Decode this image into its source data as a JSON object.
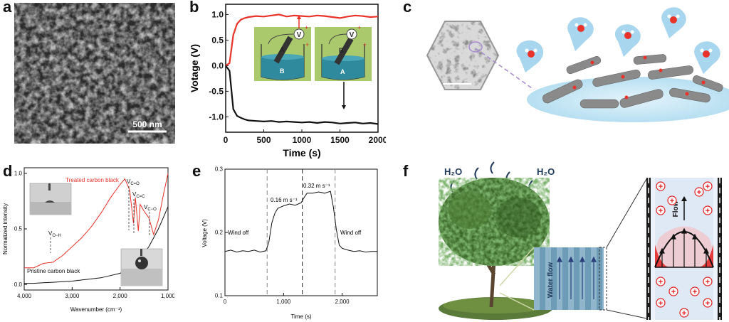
{
  "panels": {
    "a": {
      "label": "a",
      "scalebar": "500 nm"
    },
    "b": {
      "label": "b",
      "ylabel": "Votage (V)",
      "xlabel": "Time (s)",
      "yticks": [
        "1.0",
        "0.5",
        "0.0",
        "-0.5",
        "-1.0"
      ],
      "xticks": [
        "0",
        "500",
        "1000",
        "1500",
        "2000"
      ],
      "inset_labels": [
        "V",
        "A",
        "B",
        "V",
        "B",
        "A"
      ],
      "signs": [
        "+",
        "+",
        "+",
        "+"
      ]
    },
    "c": {
      "label": "c"
    },
    "d": {
      "label": "d",
      "ylabel": "Normalized intensity",
      "xlabel": "Wavenumber (cm⁻¹)",
      "yticks": [
        "1.0",
        "0.5",
        "0.0"
      ],
      "xticks": [
        "4,000",
        "3,000",
        "2,000",
        "1,000"
      ],
      "series_treated": "Treated carbon black",
      "series_pristine": "Pristine carbon black",
      "peaks": [
        "V",
        "V",
        "V",
        "V"
      ],
      "peak_subs": [
        "O−H",
        "C=O",
        "C=C",
        "C−O"
      ]
    },
    "e": {
      "label": "e",
      "ylabel": "Voltage (V)",
      "xlabel": "Time (s)",
      "yticks": [
        "0.3",
        "0.2",
        "0.1"
      ],
      "xticks": [
        "0",
        "1,000",
        "2,000"
      ],
      "wind_off_left": "Wind off",
      "wind_off_right": "Wind off",
      "speed1": "0.16 m s⁻¹",
      "speed2": "0.32 m s⁻¹"
    },
    "f": {
      "label": "f",
      "h2o_left": "H₂O",
      "h2o_right": "H₂O",
      "waterflow": "Water flow",
      "flow": "Flow",
      "plus": "+"
    }
  },
  "colors": {
    "red": "#e8322a",
    "black": "#111111",
    "grey": "#555555",
    "beaker_bg": "#a8c86a",
    "water": "#3a8a9a",
    "bubble": "#9fd2ee",
    "channel": "#8fb6cc",
    "red_charge": "#e02020",
    "pink": "#f0c8d0"
  },
  "chart_data": [
    {
      "type": "line",
      "panel": "b",
      "xlabel": "Time (s)",
      "ylabel": "Votage (V)",
      "xlim": [
        0,
        2000
      ],
      "ylim": [
        -1.3,
        1.2
      ],
      "series": [
        {
          "color": "red",
          "x": [
            0,
            50,
            100,
            150,
            200,
            250,
            300,
            400,
            500,
            600,
            700,
            800,
            900,
            1000,
            1100,
            1200,
            1300,
            1400,
            1500,
            1600,
            1700,
            1800,
            1900,
            2000
          ],
          "y": [
            0.0,
            0.05,
            0.6,
            0.82,
            0.9,
            0.93,
            0.95,
            0.97,
            0.96,
            0.98,
            1.0,
            0.96,
            0.98,
            0.97,
            0.96,
            0.98,
            0.97,
            0.95,
            0.93,
            0.96,
            0.98,
            0.97,
            0.95,
            0.96
          ]
        },
        {
          "color": "black",
          "x": [
            0,
            50,
            100,
            150,
            200,
            250,
            300,
            400,
            500,
            600,
            700,
            800,
            900,
            1000,
            1100,
            1200,
            1300,
            1400,
            1500,
            1600,
            1700,
            1800,
            1900,
            2000
          ],
          "y": [
            0.0,
            -0.1,
            -0.85,
            -0.98,
            -1.02,
            -1.05,
            -1.07,
            -1.08,
            -1.09,
            -1.08,
            -1.1,
            -1.09,
            -1.1,
            -1.11,
            -1.1,
            -1.12,
            -1.1,
            -1.11,
            -1.13,
            -1.12,
            -1.11,
            -1.13,
            -1.12,
            -1.14
          ]
        }
      ]
    },
    {
      "type": "line",
      "panel": "d",
      "xlabel": "Wavenumber (cm⁻¹)",
      "ylabel": "Normalized intensity",
      "xlim": [
        4000,
        1000
      ],
      "ylim": [
        -0.05,
        1.05
      ],
      "series": [
        {
          "name": "Treated carbon black",
          "color": "red",
          "x": [
            4000,
            3800,
            3600,
            3400,
            3200,
            3000,
            2800,
            2600,
            2400,
            2200,
            2000,
            1900,
            1800,
            1720,
            1680,
            1620,
            1580,
            1500,
            1400,
            1300,
            1200,
            1100,
            1000
          ],
          "y": [
            0.15,
            0.15,
            0.19,
            0.2,
            0.26,
            0.34,
            0.42,
            0.52,
            0.64,
            0.78,
            0.9,
            0.95,
            0.85,
            0.55,
            0.78,
            0.48,
            0.72,
            0.66,
            0.6,
            0.45,
            0.58,
            0.8,
            1.0
          ]
        },
        {
          "name": "Pristine carbon black",
          "color": "black",
          "x": [
            4000,
            3800,
            3600,
            3400,
            3200,
            3000,
            2800,
            2600,
            2400,
            2200,
            2000,
            1900,
            1800,
            1700,
            1600,
            1550,
            1500,
            1400,
            1300,
            1200,
            1100,
            1000
          ],
          "y": [
            0.01,
            0.01,
            0.015,
            0.02,
            0.025,
            0.03,
            0.04,
            0.05,
            0.06,
            0.08,
            0.1,
            0.13,
            0.18,
            0.2,
            0.12,
            0.24,
            0.28,
            0.34,
            0.42,
            0.5,
            0.6,
            0.7
          ]
        }
      ]
    },
    {
      "type": "line",
      "panel": "e",
      "xlabel": "Time (s)",
      "ylabel": "Voltage (V)",
      "xlim": [
        0,
        2600
      ],
      "ylim": [
        0.1,
        0.3
      ],
      "series": [
        {
          "color": "black",
          "x": [
            0,
            100,
            200,
            300,
            400,
            500,
            600,
            700,
            750,
            800,
            850,
            900,
            1000,
            1100,
            1200,
            1300,
            1350,
            1400,
            1500,
            1600,
            1700,
            1800,
            1850,
            1900,
            1950,
            2000,
            2100,
            2200,
            2300,
            2400,
            2500,
            2600
          ],
          "y": [
            0.17,
            0.172,
            0.169,
            0.171,
            0.17,
            0.172,
            0.169,
            0.171,
            0.185,
            0.215,
            0.23,
            0.238,
            0.242,
            0.245,
            0.243,
            0.247,
            0.255,
            0.262,
            0.262,
            0.264,
            0.262,
            0.265,
            0.24,
            0.205,
            0.18,
            0.175,
            0.172,
            0.17,
            0.171,
            0.169,
            0.17,
            0.17
          ]
        }
      ]
    }
  ]
}
